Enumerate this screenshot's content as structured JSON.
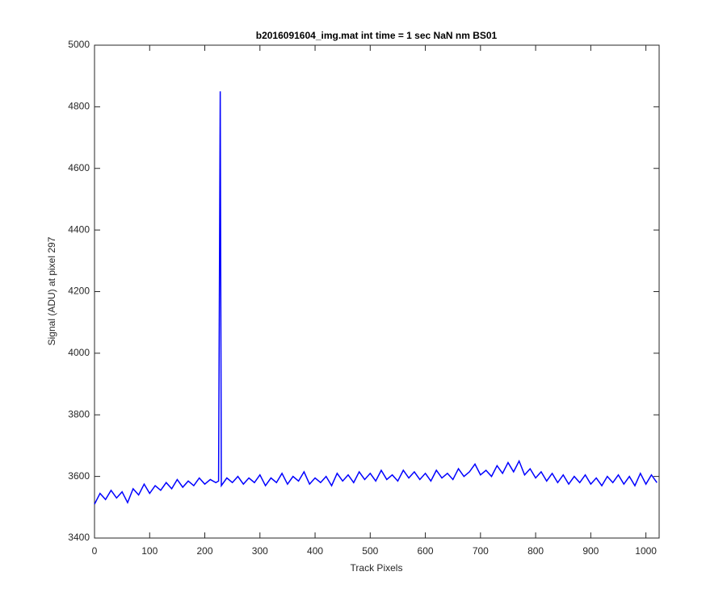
{
  "chart_data": {
    "type": "line",
    "title": "b2016091604_img.mat int time = 1 sec  NaN nm BS01",
    "x_label": "Track Pixels",
    "y_label": "Signal (ADU) at pixel 297",
    "xlim": [
      0,
      1024
    ],
    "ylim": [
      3400,
      5000
    ],
    "xticks": [
      0,
      100,
      200,
      300,
      400,
      500,
      600,
      700,
      800,
      900,
      1000
    ],
    "yticks": [
      3400,
      3600,
      3800,
      4000,
      4200,
      4400,
      4600,
      4800,
      5000
    ],
    "grid": false,
    "series": [
      {
        "color": "#0000ff",
        "x": [
          0,
          10,
          20,
          30,
          40,
          50,
          60,
          70,
          80,
          90,
          100,
          110,
          120,
          130,
          140,
          150,
          160,
          170,
          180,
          190,
          200,
          210,
          220,
          225,
          228,
          230,
          240,
          250,
          260,
          270,
          280,
          290,
          300,
          310,
          320,
          330,
          340,
          350,
          360,
          370,
          380,
          390,
          400,
          410,
          420,
          430,
          440,
          450,
          460,
          470,
          480,
          490,
          500,
          510,
          520,
          530,
          540,
          550,
          560,
          570,
          580,
          590,
          600,
          610,
          620,
          630,
          640,
          650,
          660,
          670,
          680,
          690,
          700,
          710,
          720,
          730,
          740,
          750,
          760,
          770,
          780,
          790,
          800,
          810,
          820,
          830,
          840,
          850,
          860,
          870,
          880,
          890,
          900,
          910,
          920,
          930,
          940,
          950,
          960,
          970,
          980,
          990,
          1000,
          1010,
          1020
        ],
        "values": [
          3510,
          3545,
          3525,
          3555,
          3530,
          3550,
          3515,
          3560,
          3540,
          3575,
          3545,
          3570,
          3555,
          3580,
          3560,
          3590,
          3565,
          3585,
          3570,
          3595,
          3575,
          3590,
          3580,
          3585,
          4850,
          3570,
          3595,
          3580,
          3600,
          3575,
          3595,
          3580,
          3605,
          3570,
          3595,
          3580,
          3610,
          3575,
          3600,
          3585,
          3615,
          3575,
          3595,
          3580,
          3600,
          3570,
          3610,
          3585,
          3605,
          3580,
          3615,
          3590,
          3610,
          3585,
          3620,
          3590,
          3605,
          3585,
          3620,
          3595,
          3615,
          3590,
          3610,
          3585,
          3620,
          3595,
          3610,
          3590,
          3625,
          3600,
          3615,
          3640,
          3605,
          3620,
          3600,
          3635,
          3610,
          3645,
          3615,
          3650,
          3605,
          3625,
          3595,
          3615,
          3585,
          3610,
          3580,
          3605,
          3575,
          3600,
          3580,
          3605,
          3575,
          3595,
          3570,
          3600,
          3580,
          3605,
          3575,
          3600,
          3570,
          3610,
          3575,
          3605,
          3580
        ]
      }
    ]
  }
}
